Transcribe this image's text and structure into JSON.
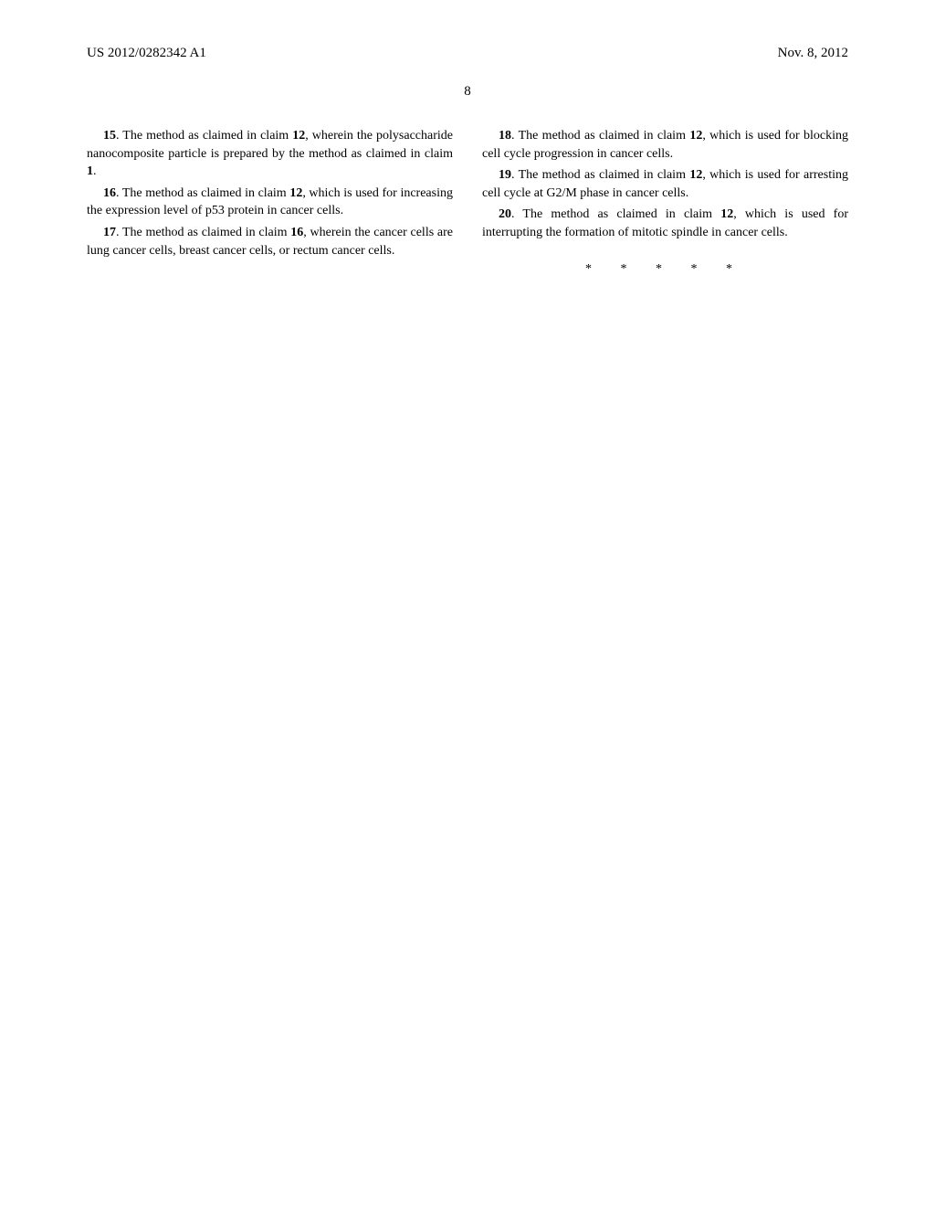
{
  "header": {
    "doc_number": "US 2012/0282342 A1",
    "date": "Nov. 8, 2012"
  },
  "page_number": "8",
  "left_column": {
    "claims": [
      {
        "number": "15",
        "ref1": "12",
        "text_before_ref1": ". The method as claimed in claim ",
        "text_after_ref1": ", wherein the polysaccharide nanocomposite particle is prepared by the method as claimed in claim ",
        "ref2": "1",
        "text_after_ref2": "."
      },
      {
        "number": "16",
        "ref1": "12",
        "text_before_ref1": ". The method as claimed in claim ",
        "text_after_ref1": ", which is used for increasing the expression level of p53 protein in cancer cells."
      },
      {
        "number": "17",
        "ref1": "16",
        "text_before_ref1": ". The method as claimed in claim ",
        "text_after_ref1": ", wherein the cancer cells are lung cancer cells, breast cancer cells, or rectum cancer cells."
      }
    ]
  },
  "right_column": {
    "claims": [
      {
        "number": "18",
        "ref1": "12",
        "text_before_ref1": ". The method as claimed in claim ",
        "text_after_ref1": ", which is used for blocking cell cycle progression in cancer cells."
      },
      {
        "number": "19",
        "ref1": "12",
        "text_before_ref1": ". The method as claimed in claim ",
        "text_after_ref1": ", which is used for arresting cell cycle at G2/M phase in cancer cells."
      },
      {
        "number": "20",
        "ref1": "12",
        "text_before_ref1": ". The method as claimed in claim ",
        "text_after_ref1": ", which is used for interrupting the formation of mitotic spindle in cancer cells."
      }
    ],
    "end_marks": "* * * * *"
  }
}
